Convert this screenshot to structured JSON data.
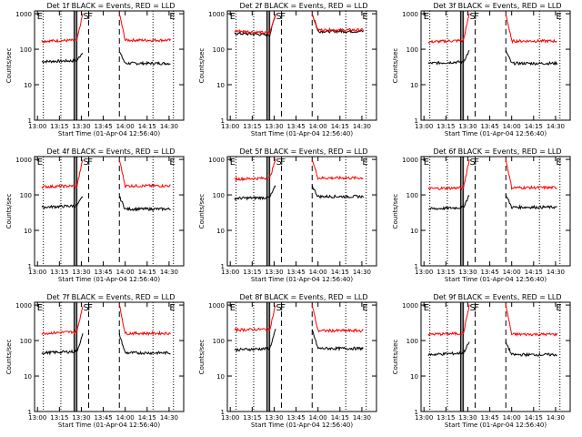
{
  "figure": {
    "background": "#ffffff",
    "colors": {
      "events": "#000000",
      "lld": "#ff0000",
      "axes": "#000000"
    }
  },
  "chart_data": [
    {
      "type": "line",
      "title": "Det 1f BLACK = Events, RED = LLD",
      "ylabel": "Counts/sec",
      "xlabel": "Start Time (01-Apr-04 12:56:40)",
      "x_ticks": [
        "13:00",
        "13:15",
        "13:30",
        "13:45",
        "14:00",
        "14:15",
        "14:30"
      ],
      "y_ticks": [
        "1",
        "10",
        "100",
        "1000"
      ],
      "ylim": [
        1,
        1200
      ],
      "y_scale": "log",
      "markers": [
        "E",
        "F",
        "S",
        "E"
      ],
      "series": [
        {
          "name": "Events",
          "color": "#000000",
          "profile": [
            45,
            48,
            85
          ],
          "tail": 40
        },
        {
          "name": "LLD",
          "color": "#ff0000",
          "profile": [
            170,
            180,
            1000
          ],
          "tail": 180
        }
      ]
    },
    {
      "type": "line",
      "title": "Det 2f BLACK = Events, RED = LLD",
      "ylabel": "Counts/sec",
      "xlabel": "Start Time (01-Apr-04 12:56:40)",
      "x_ticks": [
        "13:00",
        "13:15",
        "13:30",
        "13:45",
        "14:00",
        "14:15",
        "14:30"
      ],
      "y_ticks": [
        "1",
        "10",
        "100",
        "1000"
      ],
      "ylim": [
        1,
        1200
      ],
      "y_scale": "log",
      "markers": [
        "E",
        "F",
        "S",
        "E"
      ],
      "series": [
        {
          "name": "Events",
          "color": "#000000",
          "profile": [
            280,
            250,
            1000
          ],
          "tail": 320
        },
        {
          "name": "LLD",
          "color": "#ff0000",
          "profile": [
            330,
            280,
            1000
          ],
          "tail": 350
        }
      ]
    },
    {
      "type": "line",
      "title": "Det 3f BLACK = Events, RED = LLD",
      "ylabel": "Counts/sec",
      "xlabel": "Start Time (01-Apr-04 12:56:40)",
      "x_ticks": [
        "13:00",
        "13:15",
        "13:30",
        "13:45",
        "14:00",
        "14:15",
        "14:30"
      ],
      "y_ticks": [
        "1",
        "10",
        "100",
        "1000"
      ],
      "ylim": [
        1,
        1200
      ],
      "y_scale": "log",
      "markers": [
        "E",
        "F",
        "S",
        "E"
      ],
      "series": [
        {
          "name": "Events",
          "color": "#000000",
          "profile": [
            40,
            45,
            90
          ],
          "tail": 40
        },
        {
          "name": "LLD",
          "color": "#ff0000",
          "profile": [
            160,
            180,
            1000
          ],
          "tail": 170
        }
      ]
    },
    {
      "type": "line",
      "title": "Det 4f BLACK = Events, RED = LLD",
      "ylabel": "Counts/sec",
      "xlabel": "Start Time (01-Apr-04 12:56:40)",
      "x_ticks": [
        "13:00",
        "13:15",
        "13:30",
        "13:45",
        "14:00",
        "14:15",
        "14:30"
      ],
      "y_ticks": [
        "1",
        "10",
        "100",
        "1000"
      ],
      "ylim": [
        1,
        1200
      ],
      "y_scale": "log",
      "markers": [
        "E",
        "F",
        "S",
        "E"
      ],
      "series": [
        {
          "name": "Events",
          "color": "#000000",
          "profile": [
            45,
            50,
            90
          ],
          "tail": 40
        },
        {
          "name": "LLD",
          "color": "#ff0000",
          "profile": [
            170,
            180,
            1000
          ],
          "tail": 180
        }
      ]
    },
    {
      "type": "line",
      "title": "Det 5f BLACK = Events, RED = LLD",
      "ylabel": "Counts/sec",
      "xlabel": "Start Time (01-Apr-04 12:56:40)",
      "x_ticks": [
        "13:00",
        "13:15",
        "13:30",
        "13:45",
        "14:00",
        "14:15",
        "14:30"
      ],
      "y_ticks": [
        "1",
        "10",
        "100",
        "1000"
      ],
      "ylim": [
        1,
        1200
      ],
      "y_scale": "log",
      "markers": [
        "E",
        "F",
        "S",
        "E"
      ],
      "series": [
        {
          "name": "Events",
          "color": "#000000",
          "profile": [
            80,
            85,
            180
          ],
          "tail": 90
        },
        {
          "name": "LLD",
          "color": "#ff0000",
          "profile": [
            280,
            300,
            1000
          ],
          "tail": 300
        }
      ]
    },
    {
      "type": "line",
      "title": "Det 6f BLACK = Events, RED = LLD",
      "ylabel": "Counts/sec",
      "xlabel": "Start Time (01-Apr-04 12:56:40)",
      "x_ticks": [
        "13:00",
        "13:15",
        "13:30",
        "13:45",
        "14:00",
        "14:15",
        "14:30"
      ],
      "y_ticks": [
        "1",
        "10",
        "100",
        "1000"
      ],
      "ylim": [
        1,
        1200
      ],
      "y_scale": "log",
      "markers": [
        "E",
        "F",
        "S",
        "E"
      ],
      "series": [
        {
          "name": "Events",
          "color": "#000000",
          "profile": [
            40,
            45,
            100
          ],
          "tail": 45
        },
        {
          "name": "LLD",
          "color": "#ff0000",
          "profile": [
            150,
            160,
            1000
          ],
          "tail": 160
        }
      ]
    },
    {
      "type": "line",
      "title": "Det 7f BLACK = Events, RED = LLD",
      "ylabel": "Counts/sec",
      "xlabel": "Start Time (01-Apr-04 12:56:40)",
      "x_ticks": [
        "13:00",
        "13:15",
        "13:30",
        "13:45",
        "14:00",
        "14:15",
        "14:30"
      ],
      "y_ticks": [
        "1",
        "10",
        "100",
        "1000"
      ],
      "ylim": [
        1,
        1200
      ],
      "y_scale": "log",
      "markers": [
        "E",
        "F",
        "S",
        "E"
      ],
      "series": [
        {
          "name": "Events",
          "color": "#000000",
          "profile": [
            45,
            50,
            150
          ],
          "tail": 45
        },
        {
          "name": "LLD",
          "color": "#ff0000",
          "profile": [
            160,
            180,
            1000
          ],
          "tail": 160
        }
      ]
    },
    {
      "type": "line",
      "title": "Det 8f BLACK = Events, RED = LLD",
      "ylabel": "Counts/sec",
      "xlabel": "Start Time (01-Apr-04 12:56:40)",
      "x_ticks": [
        "13:00",
        "13:15",
        "13:30",
        "13:45",
        "14:00",
        "14:15",
        "14:30"
      ],
      "y_ticks": [
        "1",
        "10",
        "100",
        "1000"
      ],
      "ylim": [
        1,
        1200
      ],
      "y_scale": "log",
      "markers": [
        "E",
        "F",
        "S",
        "E"
      ],
      "series": [
        {
          "name": "Events",
          "color": "#000000",
          "profile": [
            55,
            60,
            200
          ],
          "tail": 60
        },
        {
          "name": "LLD",
          "color": "#ff0000",
          "profile": [
            200,
            210,
            1000
          ],
          "tail": 190
        }
      ]
    },
    {
      "type": "line",
      "title": "Det 9f BLACK = Events, RED = LLD",
      "ylabel": "Counts/sec",
      "xlabel": "Start Time (01-Apr-04 12:56:40)",
      "x_ticks": [
        "13:00",
        "13:15",
        "13:30",
        "13:45",
        "14:00",
        "14:15",
        "14:30"
      ],
      "y_ticks": [
        "1",
        "10",
        "100",
        "1000"
      ],
      "ylim": [
        1,
        1200
      ],
      "y_scale": "log",
      "markers": [
        "E",
        "F",
        "S",
        "E"
      ],
      "series": [
        {
          "name": "Events",
          "color": "#000000",
          "profile": [
            40,
            45,
            90
          ],
          "tail": 40
        },
        {
          "name": "LLD",
          "color": "#ff0000",
          "profile": [
            150,
            160,
            1000
          ],
          "tail": 150
        }
      ]
    }
  ]
}
